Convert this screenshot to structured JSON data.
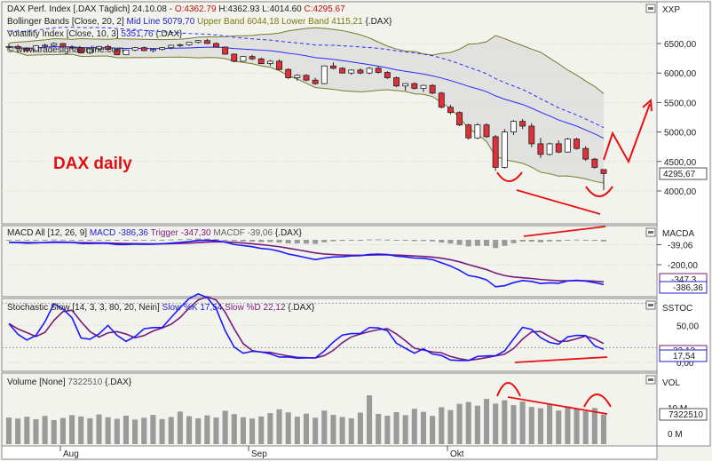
{
  "title_daily": "DAX daily",
  "panels": {
    "price": {
      "header_line1": "DAX Perf. Index [.DAX  Täglich] 24.10.08 - ",
      "ohlc": {
        "o": "O:4362.79",
        "h": "H:4362.93",
        "l": "L:4014.60",
        "c": "C:4295.67"
      },
      "header_line2_prefix": "Bollinger Bands [Close, 20, 2] ",
      "header_line2_mid": "Mid Line 5079,70 ",
      "header_line2_up": "Upper Band 6044,18 ",
      "header_line2_low": "Lower Band 4115,21 ",
      "header_line2_suffix": "{.DAX}",
      "header_line3_prefix": "Volatility Index [Close, 10, 3] ",
      "header_line3_val": "5351,76",
      "header_line3_suffix": " {.DAX}",
      "watermark": "© www.tradesignalonline.com",
      "axis_title": "XXP",
      "yticks": [
        "6500,00",
        "6000,00",
        "5500,00",
        "5000,00",
        "4500,00",
        "4000,00"
      ],
      "ytick_values": [
        6500,
        6000,
        5500,
        5000,
        4500,
        4000
      ],
      "last_value": "4295,67"
    },
    "macd": {
      "header_prefix": "MACD All [12, 26, 9] ",
      "header_macd": "MACD -386,36 ",
      "header_trigger": "Trigger -347,30 ",
      "header_macdf": "MACDF -39,06",
      "header_suffix": " {.DAX}",
      "axis_title": "MACDA",
      "yticks": [
        "-39,06",
        "-200,00"
      ],
      "badge1": "-347,3",
      "badge2": "-386,36"
    },
    "stoch": {
      "header_prefix": "Stochastic Slow [14, 3, 3, 80, 20, Nein] ",
      "header_k": "Slow %K 17,54 ",
      "header_d": "Slow %D 22,12",
      "header_suffix": " {.DAX}",
      "axis_title": "SSTOC",
      "yticks": [
        "50,00",
        "0,00"
      ],
      "badge1": "22,12",
      "badge2": "17,54"
    },
    "volume": {
      "header_prefix": "Volume [None] ",
      "header_val": "7322510",
      "header_suffix": " {.DAX}",
      "axis_title": "VOL",
      "yticks": [
        "10 M",
        "0 M"
      ],
      "badge": "7322510"
    }
  },
  "xaxis": {
    "labels": [
      "Aug",
      "Sep",
      "Okt"
    ]
  },
  "colors": {
    "up": "#ffffff",
    "down": "#e0303a",
    "mid": "#2a2aff",
    "upper": "#7a7a2a",
    "band_fill": "#d8d8d8",
    "macd": "#1a1aff",
    "trigger": "#7a1a7a",
    "hist": "#9a9a9a",
    "annot": "#e81010",
    "green": "#2a7a2a"
  },
  "chart_data": [
    {
      "type": "candlestick",
      "title": "DAX Perf. Index",
      "ohlc": [
        [
          6440,
          6500,
          6395,
          6450
        ],
        [
          6450,
          6480,
          6410,
          6420
        ],
        [
          6420,
          6440,
          6360,
          6380
        ],
        [
          6380,
          6470,
          6370,
          6460
        ],
        [
          6460,
          6500,
          6430,
          6470
        ],
        [
          6470,
          6520,
          6440,
          6500
        ],
        [
          6500,
          6510,
          6420,
          6440
        ],
        [
          6440,
          6470,
          6400,
          6430
        ],
        [
          6430,
          6440,
          6330,
          6340
        ],
        [
          6340,
          6420,
          6320,
          6410
        ],
        [
          6410,
          6460,
          6380,
          6450
        ],
        [
          6450,
          6480,
          6390,
          6400
        ],
        [
          6400,
          6410,
          6300,
          6310
        ],
        [
          6310,
          6400,
          6300,
          6390
        ],
        [
          6390,
          6440,
          6370,
          6430
        ],
        [
          6430,
          6450,
          6370,
          6380
        ],
        [
          6380,
          6420,
          6350,
          6400
        ],
        [
          6400,
          6440,
          6380,
          6430
        ],
        [
          6430,
          6480,
          6400,
          6470
        ],
        [
          6470,
          6500,
          6440,
          6480
        ],
        [
          6480,
          6530,
          6460,
          6520
        ],
        [
          6520,
          6560,
          6500,
          6550
        ],
        [
          6550,
          6580,
          6490,
          6500
        ],
        [
          6500,
          6520,
          6430,
          6440
        ],
        [
          6440,
          6450,
          6310,
          6320
        ],
        [
          6320,
          6330,
          6180,
          6200
        ],
        [
          6200,
          6290,
          6190,
          6280
        ],
        [
          6280,
          6310,
          6220,
          6240
        ],
        [
          6240,
          6260,
          6150,
          6160
        ],
        [
          6160,
          6220,
          6120,
          6200
        ],
        [
          6200,
          6230,
          6050,
          6060
        ],
        [
          6060,
          6080,
          5900,
          5920
        ],
        [
          5920,
          5980,
          5870,
          5960
        ],
        [
          5960,
          5980,
          5860,
          5880
        ],
        [
          5880,
          5920,
          5800,
          5820
        ],
        [
          5820,
          6130,
          5810,
          6120
        ],
        [
          6120,
          6180,
          6060,
          6080
        ],
        [
          6080,
          6100,
          5990,
          6000
        ],
        [
          6000,
          6060,
          5970,
          6050
        ],
        [
          6050,
          6080,
          5980,
          6000
        ],
        [
          6000,
          6100,
          5980,
          6080
        ],
        [
          6080,
          6120,
          5990,
          6010
        ],
        [
          6010,
          6030,
          5900,
          5920
        ],
        [
          5920,
          5940,
          5760,
          5780
        ],
        [
          5780,
          5830,
          5700,
          5820
        ],
        [
          5820,
          5840,
          5720,
          5740
        ],
        [
          5740,
          5800,
          5680,
          5790
        ],
        [
          5790,
          5810,
          5640,
          5660
        ],
        [
          5660,
          5680,
          5400,
          5420
        ],
        [
          5420,
          5460,
          5300,
          5330
        ],
        [
          5330,
          5350,
          5100,
          5120
        ],
        [
          5120,
          5140,
          4870,
          4900
        ],
        [
          4900,
          5150,
          4880,
          5120
        ],
        [
          5120,
          5150,
          4900,
          4920
        ],
        [
          4920,
          4950,
          4340,
          4400
        ],
        [
          4400,
          5050,
          4380,
          5000
        ],
        [
          5000,
          5200,
          4950,
          5180
        ],
        [
          5180,
          5220,
          5050,
          5100
        ],
        [
          5100,
          5150,
          4740,
          4800
        ],
        [
          4800,
          4900,
          4560,
          4620
        ],
        [
          4620,
          4820,
          4600,
          4800
        ],
        [
          4800,
          4860,
          4640,
          4660
        ],
        [
          4660,
          4900,
          4650,
          4880
        ],
        [
          4880,
          4900,
          4700,
          4720
        ],
        [
          4720,
          4760,
          4510,
          4540
        ],
        [
          4540,
          4560,
          4380,
          4400
        ],
        [
          4362.79,
          4362.93,
          4014.6,
          4295.67
        ]
      ],
      "last_close": 4295.67,
      "bollinger": {
        "period": 20,
        "mid": 5079.7,
        "upper": 6044.18,
        "lower": 4115.21
      },
      "volatility_index": 5351.76,
      "ylim": [
        3800,
        6800
      ]
    },
    {
      "type": "line",
      "title": "MACD All [12, 26, 9]",
      "series": [
        {
          "name": "MACD",
          "last": -386.36
        },
        {
          "name": "Trigger",
          "last": -347.3
        },
        {
          "name": "MACDF",
          "last": -39.06
        }
      ]
    },
    {
      "type": "line",
      "title": "Stochastic Slow [14, 3, 3, 80, 20, Nein]",
      "series": [
        {
          "name": "Slow %K",
          "last": 17.54
        },
        {
          "name": "Slow %D",
          "last": 22.12
        }
      ],
      "ylim": [
        0,
        100
      ]
    },
    {
      "type": "bar",
      "title": "Volume [None]",
      "values": [
        6.2,
        5.8,
        6.5,
        5.5,
        6.8,
        5.2,
        6.0,
        7.1,
        6.6,
        5.9,
        7.4,
        6.3,
        5.7,
        6.9,
        5.4,
        6.1,
        7.2,
        5.6,
        6.4,
        8.5,
        6.7,
        5.9,
        7.0,
        6.2,
        8.8,
        7.5,
        6.3,
        5.8,
        6.6,
        7.9,
        9.4,
        8.2,
        6.5,
        7.7,
        6.1,
        8.9,
        7.2,
        6.4,
        5.9,
        8.1,
        14.8,
        7.6,
        6.9,
        8.3,
        7.1,
        9.6,
        8.4,
        6.8,
        10.2,
        9.1,
        11.5,
        12.2,
        10.8,
        13.4,
        11.6,
        12.9,
        11.0,
        12.4,
        10.3,
        9.8,
        11.2,
        8.9,
        10.5,
        9.7,
        8.6,
        9.9,
        7.32
      ],
      "last": 7322510
    }
  ]
}
